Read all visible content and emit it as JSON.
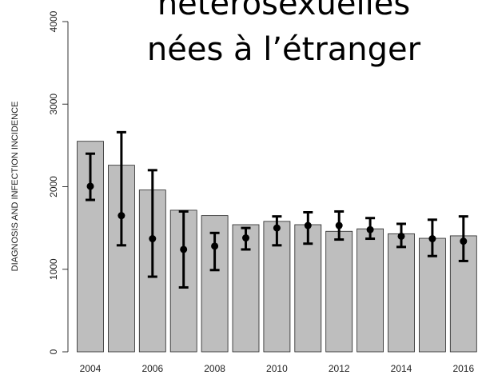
{
  "chart_data": {
    "type": "bar",
    "title": [
      "hétérosexuelles",
      "nées à l’étranger"
    ],
    "y_label": "DIAGNOSIS AND INFECTION INCIDENCE",
    "categories": [
      "2004",
      null,
      "2006",
      null,
      "2008",
      null,
      "2010",
      null,
      "2012",
      null,
      "2014",
      null,
      "2016"
    ],
    "values": [
      2550,
      2260,
      1960,
      1715,
      1650,
      1540,
      1580,
      1540,
      1460,
      1490,
      1430,
      1375,
      1405
    ],
    "color": "#bebebe",
    "estimates": [
      2005,
      1650,
      1370,
      1240,
      1280,
      1380,
      1500,
      1530,
      1530,
      1480,
      1400,
      1370,
      1340
    ],
    "lower": [
      1840,
      1290,
      910,
      780,
      990,
      1240,
      1290,
      1310,
      1360,
      1370,
      1270,
      1160,
      1100
    ],
    "upper": [
      2400,
      2660,
      2200,
      1700,
      1440,
      1500,
      1640,
      1690,
      1700,
      1620,
      1550,
      1600,
      1640
    ],
    "estimate_color": "#000000",
    "ylim": [
      0,
      4000
    ],
    "yticks": [
      0,
      1000,
      2000,
      3000,
      4000
    ]
  }
}
